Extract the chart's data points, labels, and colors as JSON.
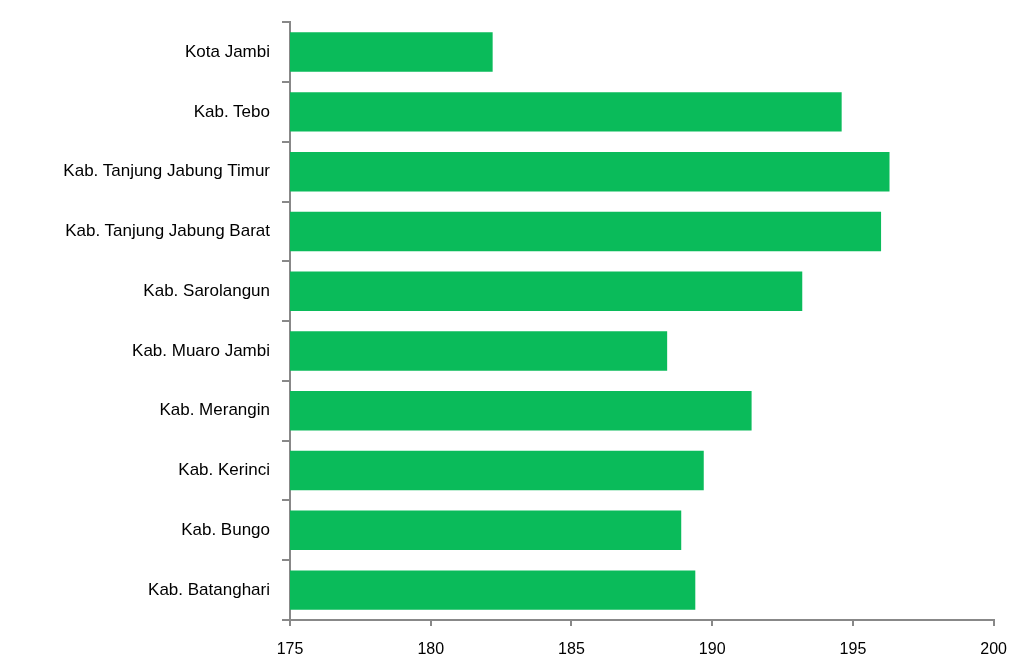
{
  "chart_data": {
    "type": "bar",
    "orientation": "horizontal",
    "categories": [
      "Kota Jambi",
      "Kab. Tebo",
      "Kab. Tanjung Jabung Timur",
      "Kab. Tanjung Jabung Barat",
      "Kab. Sarolangun",
      "Kab. Muaro Jambi",
      "Kab. Merangin",
      "Kab. Kerinci",
      "Kab. Bungo",
      "Kab. Batanghari"
    ],
    "values": [
      182.2,
      194.6,
      196.3,
      196.0,
      193.2,
      188.4,
      191.4,
      189.7,
      188.9,
      189.4
    ],
    "color": "#0abb5a",
    "xlim": [
      175,
      200
    ],
    "xticks": [
      175,
      180,
      185,
      190,
      195,
      200
    ]
  }
}
